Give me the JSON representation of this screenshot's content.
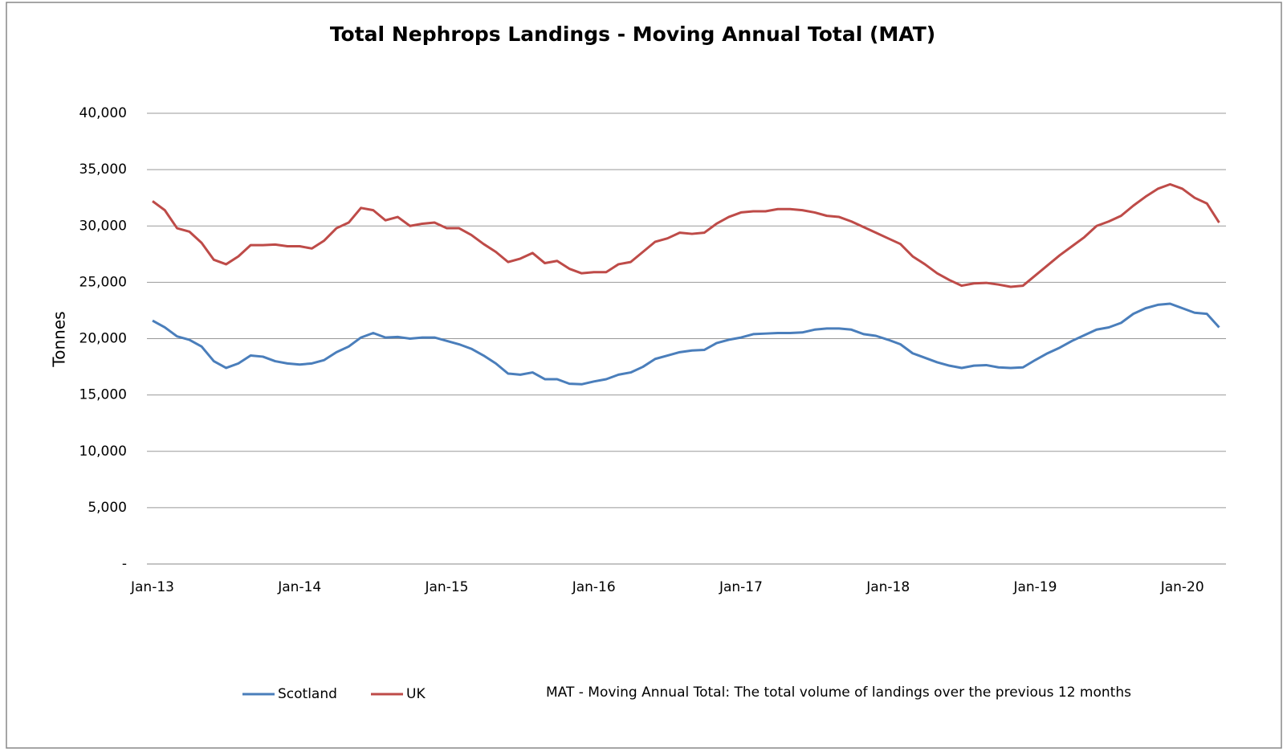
{
  "chart_data": {
    "type": "line",
    "title": "Total Nephrops Landings - Moving Annual Total (MAT)",
    "y_label": "Tonnes",
    "annotation": "MAT - Moving Annual Total: The total volume of landings  over the previous 12 months",
    "categories": [
      "Jan-13",
      null,
      null,
      null,
      null,
      null,
      null,
      null,
      null,
      null,
      null,
      null,
      "Jan-14",
      null,
      null,
      null,
      null,
      null,
      null,
      null,
      null,
      null,
      null,
      null,
      "Jan-15",
      null,
      null,
      null,
      null,
      null,
      null,
      null,
      null,
      null,
      null,
      null,
      "Jan-16",
      null,
      null,
      null,
      null,
      null,
      null,
      null,
      null,
      null,
      null,
      null,
      "Jan-17",
      null,
      null,
      null,
      null,
      null,
      null,
      null,
      null,
      null,
      null,
      null,
      "Jan-18",
      null,
      null,
      null,
      null,
      null,
      null,
      null,
      null,
      null,
      null,
      null,
      "Jan-19",
      null,
      null,
      null,
      null,
      null,
      null,
      null,
      null,
      null,
      null,
      null,
      "Jan-20",
      null,
      null,
      null
    ],
    "series": [
      {
        "name": "Scotland",
        "color": "#4a7ebb",
        "values": [
          21600,
          21000,
          20200,
          19900,
          19300,
          18000,
          17400,
          17800,
          18500,
          18400,
          18000,
          17800,
          17700,
          17800,
          18100,
          18800,
          19300,
          20100,
          20500,
          20100,
          20150,
          20000,
          20100,
          20100,
          19800,
          19500,
          19100,
          18500,
          17800,
          16900,
          16800,
          17000,
          16400,
          16400,
          16000,
          15950,
          16200,
          16400,
          16800,
          17000,
          17500,
          18200,
          18500,
          18800,
          18950,
          19000,
          19600,
          19900,
          20100,
          20400,
          20450,
          20500,
          20500,
          20550,
          20800,
          20900,
          20900,
          20800,
          20400,
          20250,
          19900,
          19500,
          18700,
          18300,
          17900,
          17600,
          17400,
          17600,
          17650,
          17450,
          17400,
          17450,
          18100,
          18700,
          19200,
          19800,
          20300,
          20800,
          21000,
          21400,
          22200,
          22700,
          23000,
          23100,
          22700,
          22300,
          22200,
          21000
        ]
      },
      {
        "name": "UK",
        "color": "#be4b48",
        "values": [
          32200,
          31400,
          29800,
          29500,
          28500,
          27000,
          26600,
          27300,
          28300,
          28300,
          28350,
          28200,
          28200,
          28000,
          28700,
          29800,
          30300,
          31600,
          31400,
          30500,
          30800,
          30000,
          30200,
          30300,
          29800,
          29800,
          29200,
          28400,
          27700,
          26800,
          27100,
          27600,
          26700,
          26900,
          26200,
          25800,
          25900,
          25900,
          26600,
          26800,
          27700,
          28600,
          28900,
          29400,
          29300,
          29400,
          30200,
          30800,
          31200,
          31300,
          31300,
          31500,
          31500,
          31400,
          31200,
          30900,
          30800,
          30400,
          29900,
          29400,
          28900,
          28400,
          27300,
          26600,
          25800,
          25200,
          24700,
          24900,
          24950,
          24800,
          24600,
          24700,
          25600,
          26500,
          27400,
          28200,
          29000,
          30000,
          30400,
          30900,
          31800,
          32600,
          33300,
          33700,
          33300,
          32500,
          32000,
          30300
        ]
      }
    ],
    "ylim": [
      0,
      40000
    ],
    "yticks": [
      {
        "value": 0,
        "label": "-"
      },
      {
        "value": 5000,
        "label": "5,000"
      },
      {
        "value": 10000,
        "label": "10,000"
      },
      {
        "value": 15000,
        "label": "15,000"
      },
      {
        "value": 20000,
        "label": "20,000"
      },
      {
        "value": 25000,
        "label": "25,000"
      },
      {
        "value": 30000,
        "label": "30,000"
      },
      {
        "value": 35000,
        "label": "35,000"
      },
      {
        "value": 40000,
        "label": "40,000"
      }
    ],
    "grid": true,
    "legend": "bottom"
  }
}
